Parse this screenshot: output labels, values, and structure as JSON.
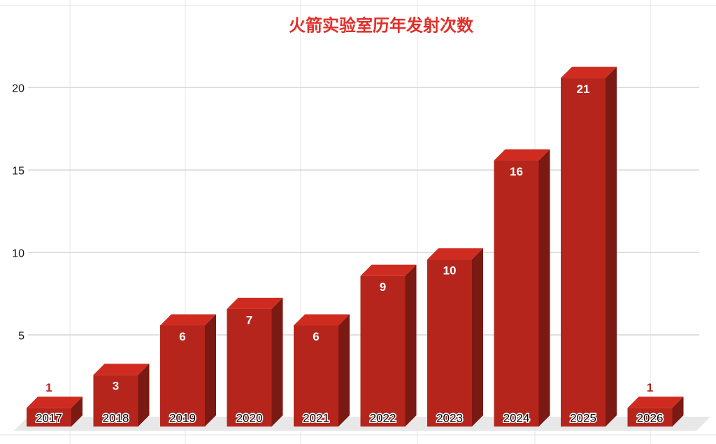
{
  "chart_data": {
    "type": "bar3d",
    "title": "火箭实验室历年发射次数",
    "categories": [
      "2017",
      "2018",
      "2019",
      "2020",
      "2021",
      "2022",
      "2023",
      "2024",
      "2025",
      "2026"
    ],
    "values": [
      1,
      3,
      6,
      7,
      6,
      9,
      10,
      16,
      21,
      1
    ],
    "color": "#b5251c",
    "title_color": "#e0302a",
    "ylim": [
      0,
      22
    ],
    "yticks": [
      5,
      10,
      15,
      20
    ],
    "grid": true
  }
}
